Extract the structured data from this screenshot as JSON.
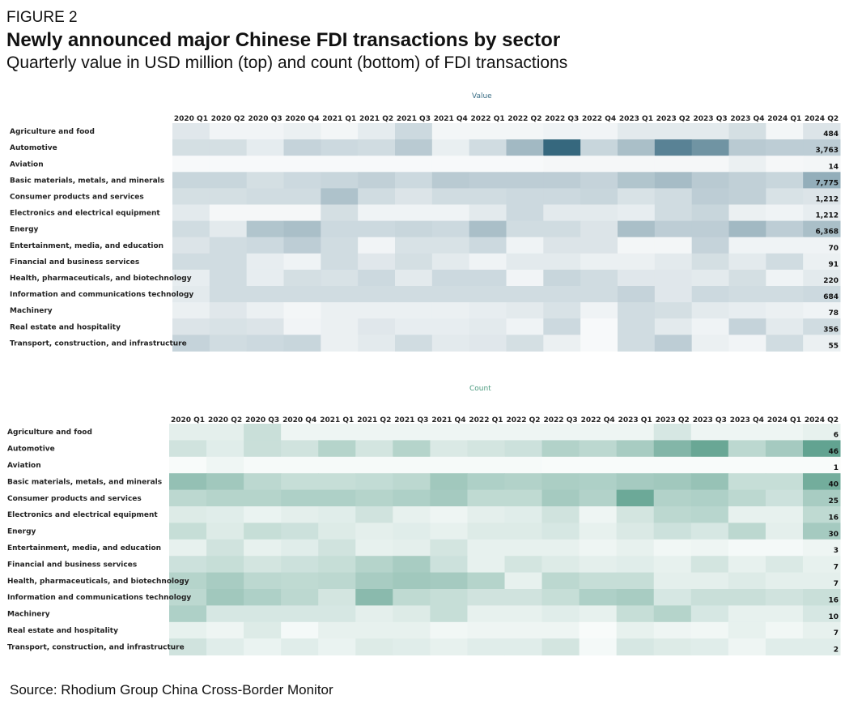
{
  "header": {
    "figure_label": "FIGURE 2",
    "title": "Newly announced major Chinese FDI transactions by sector",
    "subtitle": "Quarterly value in USD million (top) and count (bottom) of FDI transactions"
  },
  "footer": {
    "source": "Source: Rhodium Group China Cross-Border Monitor"
  },
  "colors": {
    "value_scale": "#2e6279",
    "count_scale": "#4a9580",
    "value_title": "#3b6e86",
    "count_title": "#4a9a7e"
  },
  "chart_data": [
    {
      "type": "heatmap",
      "title": "Value",
      "columns": [
        "2020 Q1",
        "2020 Q2",
        "2020 Q3",
        "2020 Q4",
        "2021 Q1",
        "2021 Q2",
        "2021 Q3",
        "2021 Q4",
        "2022 Q1",
        "2022 Q2",
        "2022 Q3",
        "2022 Q4",
        "2023 Q1",
        "2023 Q2",
        "2023 Q3",
        "2023 Q4",
        "2024 Q1",
        "2024 Q2"
      ],
      "rows": [
        {
          "label": "Agriculture and food",
          "values": [
            0.12,
            0.03,
            0.03,
            0.06,
            0.02,
            0.09,
            0.22,
            0.02,
            0.02,
            0.02,
            0.04,
            0.03,
            0.1,
            0.1,
            0.1,
            0.18,
            0.02,
            0.14
          ],
          "label_value": "484"
        },
        {
          "label": "Automotive",
          "values": [
            0.18,
            0.18,
            0.09,
            0.26,
            0.22,
            0.2,
            0.32,
            0.07,
            0.2,
            0.44,
            1.0,
            0.24,
            0.4,
            0.82,
            0.7,
            0.32,
            0.3,
            0.3
          ],
          "label_value": "3,763"
        },
        {
          "label": "Aviation",
          "values": [
            0,
            0,
            0,
            0,
            0,
            0,
            0,
            0,
            0,
            0,
            0.01,
            0.01,
            0.01,
            0.01,
            0.01,
            0.06,
            0.01,
            0.02
          ],
          "label_value": "14"
        },
        {
          "label": "Basic materials, metals, and minerals",
          "values": [
            0.24,
            0.24,
            0.18,
            0.22,
            0.24,
            0.28,
            0.22,
            0.32,
            0.3,
            0.3,
            0.3,
            0.26,
            0.36,
            0.42,
            0.32,
            0.28,
            0.24,
            0.52
          ],
          "label_value": "7,775"
        },
        {
          "label": "Consumer products and services",
          "values": [
            0.18,
            0.18,
            0.2,
            0.2,
            0.38,
            0.2,
            0.14,
            0.2,
            0.2,
            0.22,
            0.22,
            0.24,
            0.16,
            0.2,
            0.3,
            0.28,
            0.16,
            0.14
          ],
          "label_value": "1,212"
        },
        {
          "label": "Electronics and electrical equipment",
          "values": [
            0.1,
            0.01,
            0.01,
            0.01,
            0.18,
            0.04,
            0.04,
            0.04,
            0.1,
            0.22,
            0.1,
            0.1,
            0.08,
            0.2,
            0.24,
            0.06,
            0.04,
            0.08
          ],
          "label_value": "1,212"
        },
        {
          "label": "Energy",
          "values": [
            0.2,
            0.1,
            0.36,
            0.4,
            0.22,
            0.22,
            0.24,
            0.22,
            0.4,
            0.2,
            0.2,
            0.14,
            0.4,
            0.3,
            0.3,
            0.44,
            0.3,
            0.4
          ],
          "label_value": "6,368"
        },
        {
          "label": "Entertainment, media, and education",
          "values": [
            0.14,
            0.2,
            0.22,
            0.3,
            0.2,
            0.03,
            0.16,
            0.16,
            0.22,
            0.04,
            0.14,
            0.14,
            0.02,
            0.02,
            0.26,
            0.04,
            0.04,
            0.04
          ],
          "label_value": "70"
        },
        {
          "label": "Financial and business services",
          "values": [
            0.2,
            0.2,
            0.08,
            0.04,
            0.2,
            0.12,
            0.18,
            0.1,
            0.04,
            0.1,
            0.1,
            0.06,
            0.06,
            0.1,
            0.18,
            0.1,
            0.2,
            0.06
          ],
          "label_value": "91"
        },
        {
          "label": "Health, pharmaceuticals, and biotechnology",
          "values": [
            0.08,
            0.2,
            0.08,
            0.18,
            0.16,
            0.22,
            0.1,
            0.22,
            0.22,
            0.03,
            0.24,
            0.2,
            0.12,
            0.12,
            0.1,
            0.18,
            0.04,
            0.1
          ],
          "label_value": "220"
        },
        {
          "label": "Information and communications technology",
          "values": [
            0.1,
            0.2,
            0.2,
            0.2,
            0.2,
            0.2,
            0.2,
            0.2,
            0.2,
            0.2,
            0.2,
            0.2,
            0.26,
            0.12,
            0.22,
            0.2,
            0.2,
            0.22
          ],
          "label_value": "684"
        },
        {
          "label": "Machinery",
          "values": [
            0.06,
            0.12,
            0.06,
            0.02,
            0.06,
            0.06,
            0.06,
            0.06,
            0.08,
            0.1,
            0.16,
            0.04,
            0.2,
            0.18,
            0.1,
            0.08,
            0.06,
            0.04
          ],
          "label_value": "78"
        },
        {
          "label": "Real estate and hospitality",
          "values": [
            0.14,
            0.16,
            0.14,
            0.03,
            0.06,
            0.12,
            0.08,
            0.08,
            0.1,
            0.04,
            0.22,
            0.0,
            0.2,
            0.1,
            0.04,
            0.26,
            0.1,
            0.2
          ],
          "label_value": "356"
        },
        {
          "label": "Transport, construction, and infrastructure",
          "values": [
            0.26,
            0.2,
            0.22,
            0.24,
            0.06,
            0.1,
            0.2,
            0.1,
            0.12,
            0.18,
            0.06,
            0.0,
            0.2,
            0.3,
            0.06,
            0.03,
            0.2,
            0.06
          ],
          "label_value": "55"
        }
      ]
    },
    {
      "type": "heatmap",
      "title": "Count",
      "columns": [
        "2020 Q1",
        "2020 Q2",
        "2020 Q3",
        "2020 Q4",
        "2021 Q1",
        "2021 Q2",
        "2021 Q3",
        "2021 Q4",
        "2022 Q1",
        "2022 Q2",
        "2022 Q3",
        "2022 Q4",
        "2023 Q1",
        "2023 Q2",
        "2023 Q3",
        "2023 Q4",
        "2024 Q1",
        "2024 Q2"
      ],
      "rows": [
        {
          "label": "Agriculture and food",
          "values": [
            0.12,
            0.12,
            0.28,
            0.06,
            0.06,
            0.06,
            0.06,
            0.06,
            0.06,
            0.06,
            0.06,
            0.06,
            0.06,
            0.2,
            0.06,
            0.06,
            0.06,
            0.1
          ],
          "label_value": "6"
        },
        {
          "label": "Automotive",
          "values": [
            0.24,
            0.14,
            0.28,
            0.24,
            0.4,
            0.22,
            0.4,
            0.18,
            0.22,
            0.26,
            0.42,
            0.36,
            0.48,
            0.7,
            0.86,
            0.36,
            0.5,
            0.9
          ],
          "label_value": "46"
        },
        {
          "label": "Aviation",
          "values": [
            0,
            0.05,
            0.01,
            0.01,
            0.01,
            0.01,
            0.01,
            0.01,
            0.01,
            0.01,
            0,
            0,
            0,
            0,
            0,
            0,
            0,
            0
          ],
          "label_value": "1"
        },
        {
          "label": "Basic materials, metals, and minerals",
          "values": [
            0.6,
            0.52,
            0.36,
            0.3,
            0.3,
            0.32,
            0.36,
            0.52,
            0.44,
            0.42,
            0.46,
            0.44,
            0.5,
            0.52,
            0.58,
            0.3,
            0.3,
            0.8
          ],
          "label_value": "40"
        },
        {
          "label": "Consumer products and services",
          "values": [
            0.36,
            0.4,
            0.4,
            0.44,
            0.44,
            0.4,
            0.44,
            0.5,
            0.34,
            0.34,
            0.5,
            0.42,
            0.84,
            0.42,
            0.44,
            0.36,
            0.26,
            0.48
          ],
          "label_value": "25"
        },
        {
          "label": "Electronics and electrical equipment",
          "values": [
            0.16,
            0.14,
            0.08,
            0.12,
            0.14,
            0.24,
            0.1,
            0.06,
            0.12,
            0.14,
            0.24,
            0.06,
            0.22,
            0.36,
            0.38,
            0.1,
            0.1,
            0.34
          ],
          "label_value": "16"
        },
        {
          "label": "Energy",
          "values": [
            0.3,
            0.16,
            0.3,
            0.26,
            0.16,
            0.12,
            0.14,
            0.1,
            0.16,
            0.16,
            0.2,
            0.1,
            0.18,
            0.26,
            0.2,
            0.36,
            0.12,
            0.5
          ],
          "label_value": "30"
        },
        {
          "label": "Entertainment, media, and education",
          "values": [
            0.1,
            0.24,
            0.1,
            0.14,
            0.24,
            0.1,
            0.12,
            0.22,
            0.1,
            0.1,
            0.1,
            0.06,
            0.1,
            0.04,
            0.06,
            0.02,
            0.02,
            0.06
          ],
          "label_value": "3"
        },
        {
          "label": "Financial and business services",
          "values": [
            0.26,
            0.3,
            0.22,
            0.26,
            0.3,
            0.4,
            0.48,
            0.26,
            0.1,
            0.22,
            0.16,
            0.12,
            0.14,
            0.1,
            0.22,
            0.1,
            0.18,
            0.1
          ],
          "label_value": "7"
        },
        {
          "label": "Health, pharmaceuticals, and biotechnology",
          "values": [
            0.4,
            0.48,
            0.36,
            0.34,
            0.36,
            0.48,
            0.52,
            0.5,
            0.4,
            0.1,
            0.36,
            0.3,
            0.3,
            0.12,
            0.12,
            0.16,
            0.12,
            0.12
          ],
          "label_value": "7"
        },
        {
          "label": "Information and communications technology",
          "values": [
            0.36,
            0.52,
            0.44,
            0.36,
            0.22,
            0.66,
            0.34,
            0.3,
            0.24,
            0.24,
            0.3,
            0.44,
            0.48,
            0.2,
            0.28,
            0.28,
            0.24,
            0.28
          ],
          "label_value": "16"
        },
        {
          "label": "Machinery",
          "values": [
            0.44,
            0.2,
            0.2,
            0.2,
            0.2,
            0.12,
            0.16,
            0.3,
            0.1,
            0.1,
            0.14,
            0.1,
            0.3,
            0.4,
            0.2,
            0.1,
            0.1,
            0.2
          ],
          "label_value": "10"
        },
        {
          "label": "Real estate and hospitality",
          "values": [
            0.1,
            0.06,
            0.16,
            0.02,
            0.1,
            0.1,
            0.1,
            0.04,
            0.06,
            0.06,
            0.06,
            0.0,
            0.1,
            0.06,
            0.04,
            0.1,
            0.04,
            0.1
          ],
          "label_value": "7"
        },
        {
          "label": "Transport, construction, and infrastructure",
          "values": [
            0.24,
            0.14,
            0.08,
            0.14,
            0.08,
            0.16,
            0.14,
            0.1,
            0.14,
            0.14,
            0.22,
            0.02,
            0.2,
            0.16,
            0.14,
            0.06,
            0.14,
            0.14
          ],
          "label_value": "2"
        }
      ]
    }
  ]
}
